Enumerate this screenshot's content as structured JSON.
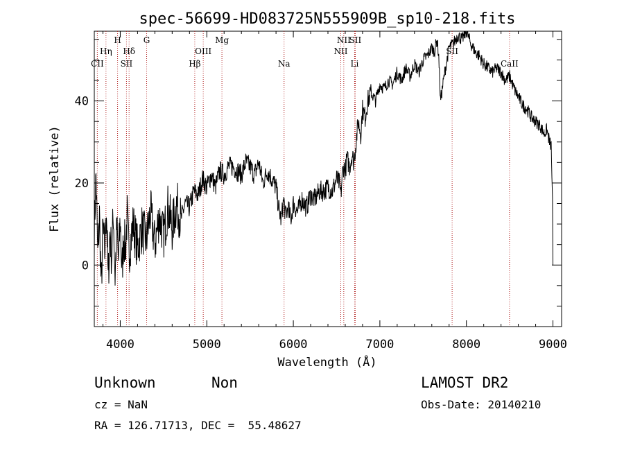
{
  "chart_data": {
    "type": "line",
    "title": "spec-56699-HD083725N555909B_sp10-218.fits",
    "xlabel": "Wavelength (Å)",
    "ylabel": "Flux (relative)",
    "xlim": [
      3700,
      9100
    ],
    "ylim": [
      -15,
      57
    ],
    "x_ticks": [
      4000,
      5000,
      6000,
      7000,
      8000,
      9000
    ],
    "y_ticks": [
      0,
      20,
      40
    ],
    "grid": false,
    "series": [
      {
        "x": [
          3700,
          3720,
          3740,
          3760,
          3780,
          3800,
          3820,
          3840,
          3860,
          3880,
          3900,
          3920,
          3940,
          3960,
          3980,
          4000,
          4020,
          4040,
          4060,
          4080,
          4100,
          4150,
          4200,
          4250,
          4300,
          4350,
          4400,
          4450,
          4500,
          4550,
          4600,
          4650,
          4700,
          4750,
          4800,
          4850,
          4900,
          4950,
          5000,
          5050,
          5100,
          5150,
          5200,
          5250,
          5300,
          5350,
          5400,
          5450,
          5500,
          5550,
          5600,
          5650,
          5700,
          5750,
          5800,
          5830,
          5860,
          5890,
          5910,
          5940,
          5970,
          6000,
          6050,
          6100,
          6150,
          6200,
          6250,
          6300,
          6350,
          6400,
          6450,
          6500,
          6530,
          6550,
          6565,
          6580,
          6600,
          6620,
          6650,
          6680,
          6700,
          6720,
          6750,
          6780,
          6800,
          6830,
          6860,
          6900,
          6950,
          7000,
          7050,
          7100,
          7150,
          7200,
          7250,
          7300,
          7350,
          7400,
          7450,
          7500,
          7550,
          7600,
          7630,
          7660,
          7680,
          7700,
          7750,
          7800,
          7850,
          7900,
          7950,
          8000,
          8050,
          8100,
          8150,
          8200,
          8250,
          8300,
          8350,
          8400,
          8450,
          8500,
          8550,
          8600,
          8650,
          8700,
          8750,
          8800,
          8850,
          8900,
          8930,
          8960,
          8980,
          8995,
          9000
        ],
        "values": [
          8,
          22,
          2,
          12,
          -6,
          9,
          3,
          14,
          -4,
          8,
          2,
          13,
          -3,
          9,
          1,
          11,
          -2,
          7,
          4,
          12,
          3,
          10,
          4,
          9,
          6,
          13,
          5,
          12,
          7,
          14,
          9,
          15,
          11,
          15,
          14,
          18,
          17,
          21,
          19,
          22,
          19,
          23,
          22,
          24,
          24,
          23,
          22,
          25,
          24,
          22,
          25,
          20,
          23,
          21,
          19,
          14,
          11,
          16,
          12,
          14,
          11,
          15,
          13,
          16,
          14,
          17,
          16,
          18,
          18,
          19,
          18,
          21,
          20,
          17,
          22,
          24,
          23,
          26,
          24,
          27,
          25,
          29,
          35,
          32,
          38,
          36,
          40,
          42,
          40,
          44,
          43,
          45,
          44,
          47,
          45,
          48,
          46,
          49,
          47,
          50,
          51,
          53,
          52,
          55,
          51,
          40,
          47,
          53,
          54,
          56,
          55,
          57,
          54,
          52,
          51,
          49,
          48,
          47,
          48,
          47,
          45,
          46,
          43,
          41,
          39,
          38,
          36,
          35,
          34,
          32,
          33,
          30,
          29,
          15,
          0
        ]
      }
    ],
    "lines": [
      {
        "name": "CII",
        "x": 3735,
        "row": 3
      },
      {
        "name": "Hη",
        "x": 3835,
        "row": 2
      },
      {
        "name": "H",
        "x": 3969,
        "row": 1
      },
      {
        "name": "Hδ",
        "x": 4102,
        "row": 2
      },
      {
        "name": "SII",
        "x": 4072,
        "row": 3
      },
      {
        "name": "G",
        "x": 4305,
        "row": 1
      },
      {
        "name": "Hβ",
        "x": 4861,
        "row": 3
      },
      {
        "name": "OIII",
        "x": 4959,
        "row": 2
      },
      {
        "name": "Mg",
        "x": 5175,
        "row": 1
      },
      {
        "name": "Na",
        "x": 5893,
        "row": 3
      },
      {
        "name": "NII",
        "x": 6548,
        "row": 2
      },
      {
        "name": "NII",
        "x": 6583,
        "row": 1
      },
      {
        "name": "SII",
        "x": 6716,
        "row": 1
      },
      {
        "name": "Li",
        "x": 6708,
        "row": 3
      },
      {
        "name": "SII",
        "x": 7835,
        "row": 2
      },
      {
        "name": "CaII",
        "x": 8498,
        "row": 3
      }
    ]
  },
  "info": {
    "class": "Unknown",
    "subclass": "Non",
    "survey": "LAMOST DR2",
    "cz": "cz = NaN",
    "obs_date": "Obs-Date: 20140210",
    "coords": "RA = 126.71713, DEC =  55.48627"
  }
}
